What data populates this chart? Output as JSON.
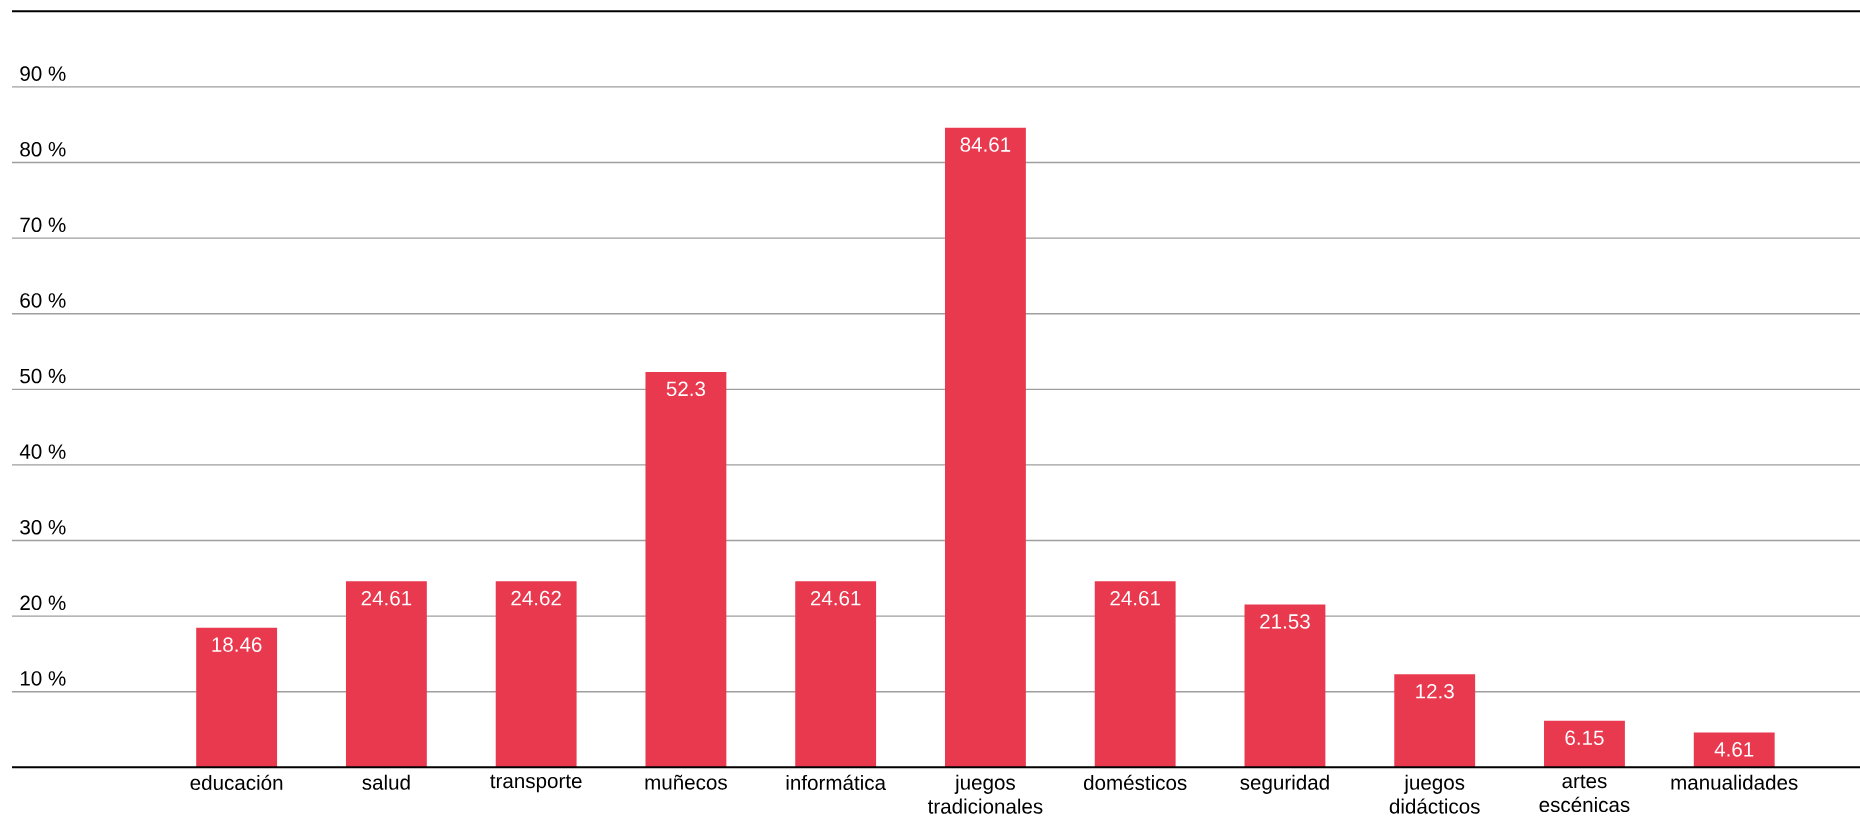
{
  "chart_data": {
    "type": "bar",
    "categories": [
      "educación",
      "salud",
      "transporte",
      "muñecos",
      "informática",
      "juegos tradicionales",
      "domésticos",
      "seguridad",
      "juegos didácticos",
      "artes escénicas",
      "manualidades"
    ],
    "values": [
      18.46,
      24.61,
      24.62,
      52.3,
      24.61,
      84.61,
      24.61,
      21.53,
      12.3,
      6.15,
      4.61
    ],
    "color": "#e8394f",
    "data_labels": true,
    "grid": "y",
    "ylim": [
      0,
      100
    ],
    "yticks": [
      {
        "value": 10,
        "label": "10 %"
      },
      {
        "value": 20,
        "label": "20 %"
      },
      {
        "value": 30,
        "label": "30 %"
      },
      {
        "value": 40,
        "label": "40 %"
      },
      {
        "value": 50,
        "label": "50 %"
      },
      {
        "value": 60,
        "label": "60 %"
      },
      {
        "value": 70,
        "label": "70 %"
      },
      {
        "value": 80,
        "label": "80 %"
      },
      {
        "value": 90,
        "label": "90 %"
      }
    ]
  }
}
